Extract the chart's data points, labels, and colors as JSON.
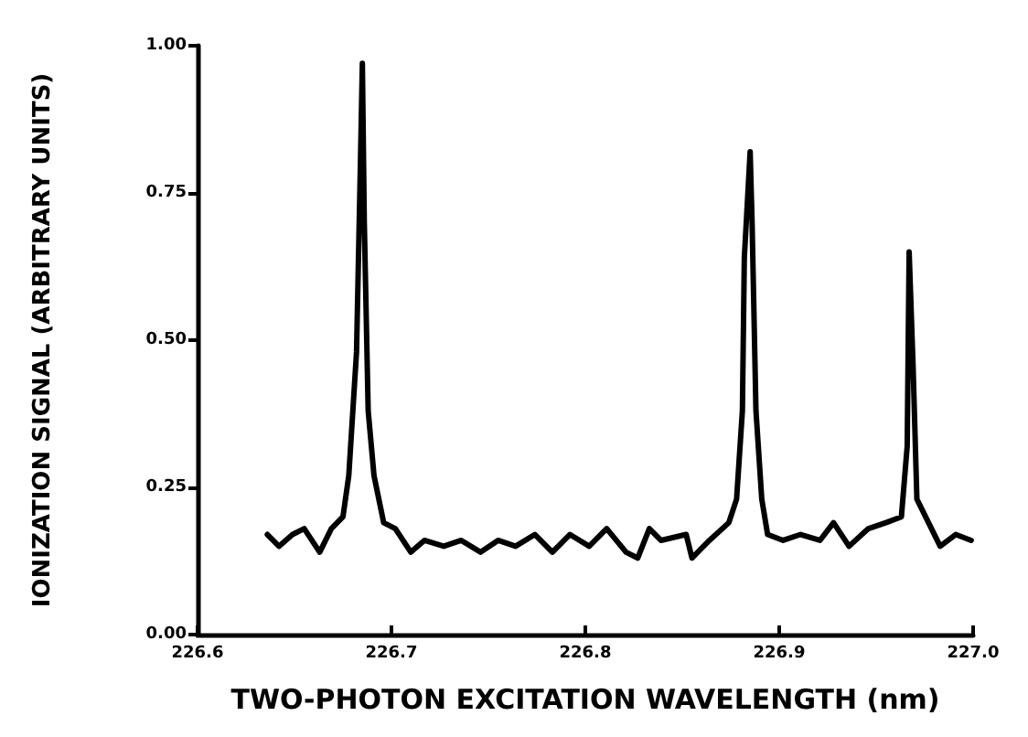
{
  "chart_data": {
    "type": "line",
    "xlabel": "TWO-PHOTON EXCITATION WAVELENGTH (nm)",
    "ylabel": "IONIZATION SIGNAL (ARBITRARY UNITS)",
    "x": [
      226.636,
      226.642,
      226.649,
      226.655,
      226.663,
      226.669,
      226.675,
      226.678,
      226.682,
      226.684,
      226.685,
      226.686,
      226.688,
      226.691,
      226.696,
      226.702,
      226.71,
      226.717,
      226.727,
      226.736,
      226.746,
      226.755,
      226.764,
      226.774,
      226.783,
      226.792,
      226.802,
      226.811,
      226.821,
      226.827,
      226.833,
      226.839,
      226.852,
      226.855,
      226.864,
      226.874,
      226.878,
      226.881,
      226.882,
      226.885,
      226.886,
      226.888,
      226.891,
      226.894,
      226.902,
      226.911,
      226.921,
      226.928,
      226.936,
      226.946,
      226.955,
      226.963,
      226.966,
      226.967,
      226.969,
      226.971,
      226.977,
      226.983,
      226.991,
      226.999
    ],
    "series": [
      {
        "color": "#000000",
        "values": [
          0.17,
          0.15,
          0.17,
          0.18,
          0.14,
          0.18,
          0.2,
          0.27,
          0.48,
          0.8,
          0.97,
          0.7,
          0.38,
          0.27,
          0.19,
          0.18,
          0.14,
          0.16,
          0.15,
          0.16,
          0.14,
          0.16,
          0.15,
          0.17,
          0.14,
          0.17,
          0.15,
          0.18,
          0.14,
          0.13,
          0.18,
          0.16,
          0.17,
          0.13,
          0.16,
          0.19,
          0.23,
          0.38,
          0.64,
          0.82,
          0.7,
          0.38,
          0.23,
          0.17,
          0.16,
          0.17,
          0.16,
          0.19,
          0.15,
          0.18,
          0.19,
          0.2,
          0.32,
          0.65,
          0.46,
          0.23,
          0.19,
          0.15,
          0.17,
          0.16
        ]
      }
    ],
    "xlim": [
      226.6,
      227.0
    ],
    "xticks": [
      {
        "value": 226.6,
        "label": "226.6"
      },
      {
        "value": 226.7,
        "label": "226.7"
      },
      {
        "value": 226.8,
        "label": "226.8"
      },
      {
        "value": 226.9,
        "label": "226.9"
      },
      {
        "value": 227.0,
        "label": "227.0"
      }
    ],
    "ylim": [
      0,
      1
    ],
    "yticks": [
      {
        "value": 0,
        "label": "0.00"
      },
      {
        "value": 0.25,
        "label": "0.25"
      },
      {
        "value": 0.5,
        "label": "0.50"
      },
      {
        "value": 0.75,
        "label": "0.75"
      },
      {
        "value": 1,
        "label": "1.00"
      }
    ],
    "grid": false,
    "marker": "none",
    "line_style": "solid"
  }
}
